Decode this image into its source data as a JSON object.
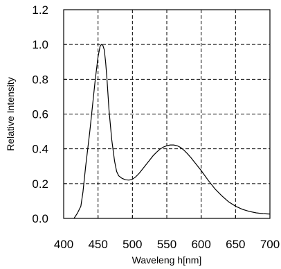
{
  "chart_data": {
    "type": "line",
    "title": "",
    "xlabel": "Waveleng h[nm]",
    "ylabel": "Relative Intensity",
    "xlim": [
      400,
      700
    ],
    "ylim": [
      0.0,
      1.2
    ],
    "x_ticks": [
      400,
      450,
      500,
      550,
      600,
      650,
      700
    ],
    "x_tick_labels": [
      "400",
      "450",
      "500",
      "550",
      "600",
      "650",
      "700"
    ],
    "y_ticks": [
      0.0,
      0.2,
      0.4,
      0.6,
      0.8,
      1.0,
      1.2
    ],
    "y_tick_labels": [
      "0.0",
      "0.2",
      "0.4",
      "0.6",
      "0.8",
      "1.0",
      "1.2"
    ],
    "grid": true,
    "grid_style": "dashed",
    "line_color": "#000000",
    "series": [
      {
        "x": [
          415,
          420,
          425,
          428,
          432,
          438,
          442,
          446,
          450,
          453,
          455,
          457,
          459,
          461,
          463,
          466,
          470,
          474,
          477,
          480,
          485,
          490,
          495,
          500,
          505,
          510,
          515,
          520,
          525,
          530,
          535,
          540,
          545,
          550,
          555,
          560,
          565,
          570,
          575,
          580,
          585,
          590,
          595,
          600,
          610,
          620,
          630,
          640,
          650,
          660,
          670,
          680,
          690,
          700
        ],
        "y": [
          0.0,
          0.03,
          0.07,
          0.15,
          0.3,
          0.5,
          0.65,
          0.8,
          0.93,
          0.99,
          1.0,
          0.995,
          0.97,
          0.9,
          0.8,
          0.62,
          0.45,
          0.33,
          0.27,
          0.245,
          0.23,
          0.222,
          0.22,
          0.225,
          0.24,
          0.26,
          0.285,
          0.31,
          0.335,
          0.36,
          0.38,
          0.398,
          0.41,
          0.418,
          0.422,
          0.422,
          0.418,
          0.408,
          0.392,
          0.372,
          0.35,
          0.325,
          0.3,
          0.275,
          0.22,
          0.17,
          0.13,
          0.095,
          0.07,
          0.052,
          0.04,
          0.032,
          0.027,
          0.025
        ]
      }
    ]
  }
}
